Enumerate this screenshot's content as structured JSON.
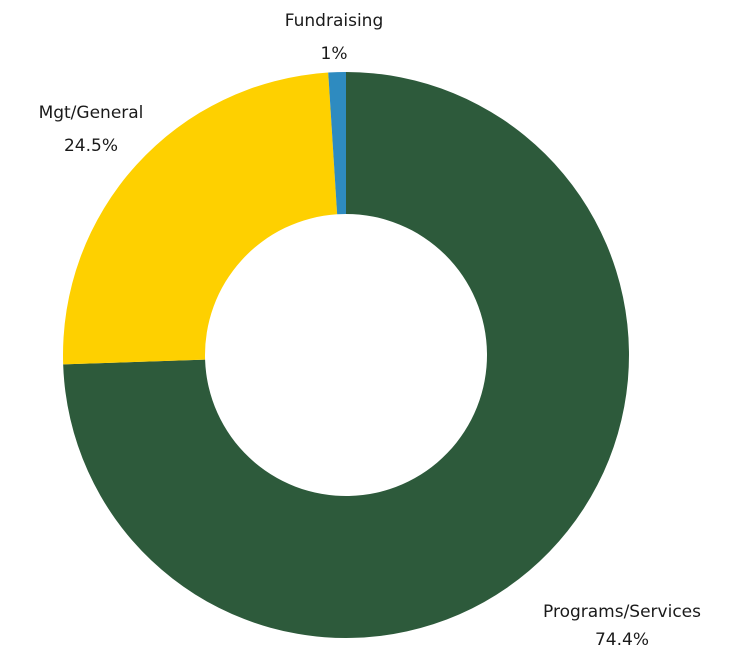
{
  "chart_data": {
    "type": "pie",
    "donut": true,
    "title": "",
    "legend": "none",
    "slices": [
      {
        "name": "Programs/Services",
        "value": 74.4,
        "value_label": "74.4%",
        "color": "#2d5a3b"
      },
      {
        "name": "Mgt/General",
        "value": 24.5,
        "value_label": "24.5%",
        "color": "#fed000"
      },
      {
        "name": "Fundraising",
        "value": 1.0,
        "value_label": "1%",
        "color": "#2e8bc0"
      }
    ]
  }
}
